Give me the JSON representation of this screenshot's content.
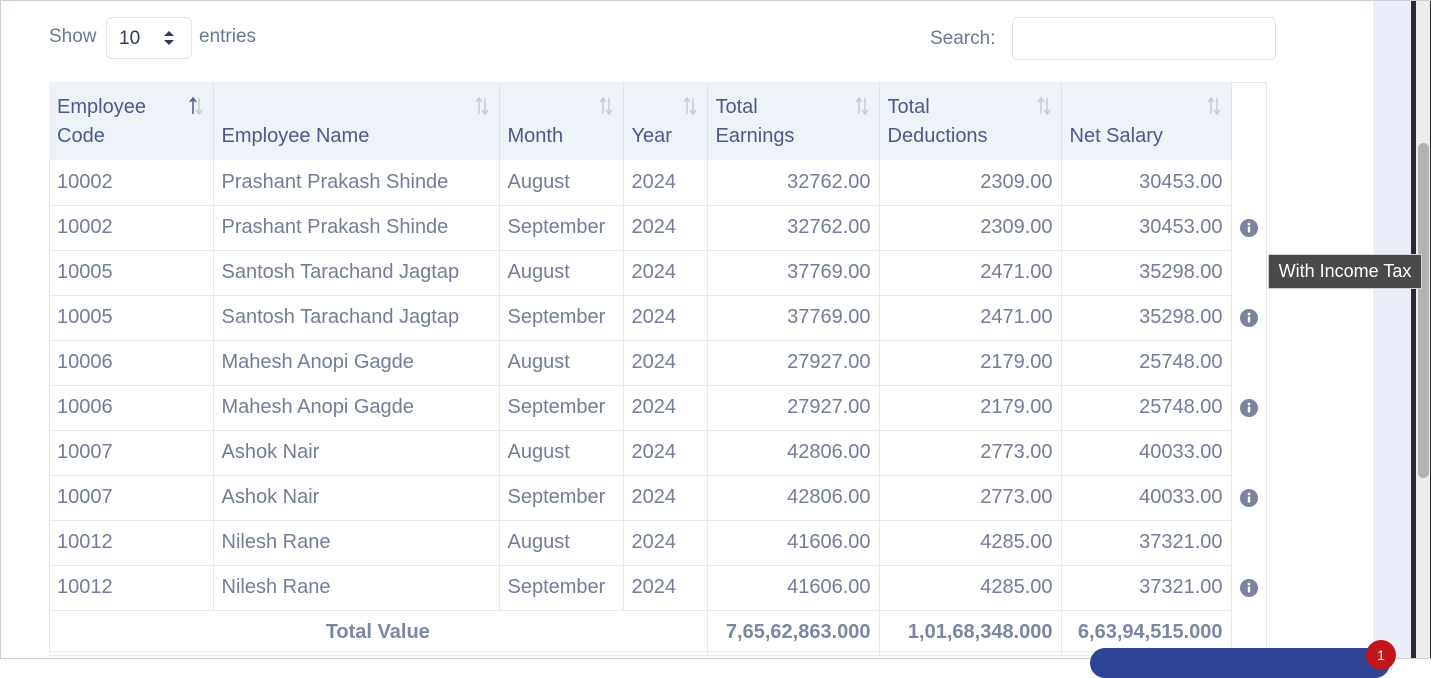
{
  "controls": {
    "show_label": "Show",
    "entries_value": "10",
    "entries_label": "entries",
    "search_label": "Search:",
    "search_value": ""
  },
  "table": {
    "columns": [
      "Employee Code",
      "Employee Name",
      "Month",
      "Year",
      "Total Earnings",
      "Total Deductions",
      "Net Salary"
    ],
    "header_lines": [
      [
        "Employee",
        "Code"
      ],
      [
        "",
        "Employee Name"
      ],
      [
        "",
        "Month"
      ],
      [
        "",
        "Year"
      ],
      [
        "Total",
        "Earnings"
      ],
      [
        "Total",
        "Deductions"
      ],
      [
        "",
        "Net Salary"
      ]
    ],
    "rows": [
      {
        "code": "10002",
        "name": "Prashant Prakash Shinde",
        "month": "August",
        "year": "2024",
        "earnings": "32762.00",
        "deductions": "2309.00",
        "net": "30453.00",
        "info": false
      },
      {
        "code": "10002",
        "name": "Prashant Prakash Shinde",
        "month": "September",
        "year": "2024",
        "earnings": "32762.00",
        "deductions": "2309.00",
        "net": "30453.00",
        "info": true
      },
      {
        "code": "10005",
        "name": "Santosh Tarachand Jagtap",
        "month": "August",
        "year": "2024",
        "earnings": "37769.00",
        "deductions": "2471.00",
        "net": "35298.00",
        "info": false
      },
      {
        "code": "10005",
        "name": "Santosh Tarachand Jagtap",
        "month": "September",
        "year": "2024",
        "earnings": "37769.00",
        "deductions": "2471.00",
        "net": "35298.00",
        "info": true
      },
      {
        "code": "10006",
        "name": "Mahesh Anopi Gagde",
        "month": "August",
        "year": "2024",
        "earnings": "27927.00",
        "deductions": "2179.00",
        "net": "25748.00",
        "info": false
      },
      {
        "code": "10006",
        "name": "Mahesh Anopi Gagde",
        "month": "September",
        "year": "2024",
        "earnings": "27927.00",
        "deductions": "2179.00",
        "net": "25748.00",
        "info": true
      },
      {
        "code": "10007",
        "name": "Ashok Nair",
        "month": "August",
        "year": "2024",
        "earnings": "42806.00",
        "deductions": "2773.00",
        "net": "40033.00",
        "info": false
      },
      {
        "code": "10007",
        "name": "Ashok Nair",
        "month": "September",
        "year": "2024",
        "earnings": "42806.00",
        "deductions": "2773.00",
        "net": "40033.00",
        "info": true
      },
      {
        "code": "10012",
        "name": "Nilesh Rane",
        "month": "August",
        "year": "2024",
        "earnings": "41606.00",
        "deductions": "4285.00",
        "net": "37321.00",
        "info": false
      },
      {
        "code": "10012",
        "name": "Nilesh Rane",
        "month": "September",
        "year": "2024",
        "earnings": "41606.00",
        "deductions": "4285.00",
        "net": "37321.00",
        "info": true
      }
    ],
    "total": {
      "label": "Total Value",
      "earnings": "7,65,62,863.000",
      "deductions": "1,01,68,348.000",
      "net": "6,63,94,515.000"
    }
  },
  "tooltip": {
    "text": "With Income Tax"
  },
  "notification": {
    "badge_count": "1"
  },
  "colors": {
    "header_bg": "#eef3fa",
    "header_text": "#4c5a88",
    "cell_text": "#727d99",
    "info_icon": "#7b849c",
    "tooltip_bg": "#4a4a4a",
    "chat_bar": "#2f4496",
    "badge": "#c3161c"
  },
  "icons": {
    "sort_active": "sort-asc-icon",
    "sort_inactive": "sort-icon",
    "info": "info-circle-icon",
    "select_arrows": "select-updown-icon"
  }
}
